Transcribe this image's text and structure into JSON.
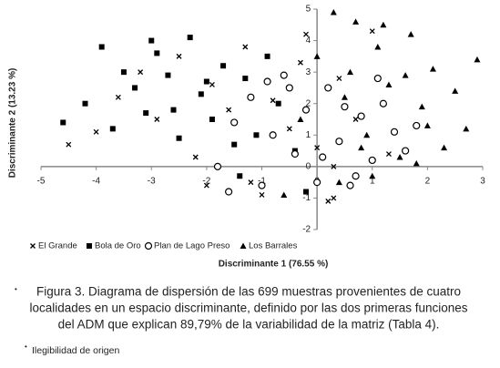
{
  "chart_data": {
    "type": "scatter",
    "x_label": "Discriminante 1 (76.55 %)",
    "y_label": "Discriminante 2 (13.23 %)",
    "xlim": [
      -5,
      3
    ],
    "xticks": [
      -5,
      -4,
      -3,
      -2,
      -1,
      0,
      1,
      2,
      3
    ],
    "ylim": [
      -2,
      5
    ],
    "yticks": [
      -2,
      -1,
      0,
      1,
      2,
      3,
      4,
      5
    ],
    "series": [
      {
        "name": "El Grande",
        "marker": "x",
        "color": "#000000",
        "x": [
          -4.5,
          -4.0,
          -3.6,
          -3.2,
          -2.9,
          -2.5,
          -2.2,
          -1.9,
          -1.6,
          -1.3,
          -1.0,
          -0.8,
          -0.5,
          -0.3,
          0.0,
          0.2,
          0.4,
          0.7,
          1.0,
          1.3,
          -2.0,
          -1.2,
          0.3,
          -0.2,
          0.3
        ],
        "values": [
          0.7,
          1.1,
          2.2,
          3.0,
          1.5,
          3.5,
          0.3,
          2.6,
          1.8,
          3.8,
          -0.9,
          2.1,
          1.2,
          3.3,
          0.6,
          -1.1,
          2.8,
          1.5,
          4.3,
          0.4,
          -0.6,
          -0.5,
          -1.0,
          4.2,
          0.0
        ]
      },
      {
        "name": "Bola de Oro",
        "marker": "square",
        "color": "#000000",
        "x": [
          -4.6,
          -4.2,
          -3.9,
          -3.7,
          -3.5,
          -3.3,
          -3.1,
          -2.9,
          -2.7,
          -2.5,
          -2.3,
          -2.1,
          -1.9,
          -1.7,
          -1.5,
          -1.3,
          -1.1,
          -0.9,
          -0.7,
          -0.4,
          -3.0,
          -2.6,
          -2.0,
          -1.4,
          -0.2
        ],
        "values": [
          1.4,
          2.0,
          3.8,
          1.2,
          3.0,
          2.5,
          1.7,
          3.6,
          2.9,
          0.9,
          4.1,
          2.3,
          1.5,
          3.2,
          0.7,
          2.8,
          1.0,
          3.5,
          2.0,
          0.5,
          4.0,
          1.8,
          2.7,
          -0.3,
          -0.8
        ]
      },
      {
        "name": "Plan de Lago Preso",
        "marker": "circle",
        "color": "#000000",
        "x": [
          -1.8,
          -1.5,
          -1.2,
          -1.0,
          -0.8,
          -0.6,
          -0.4,
          -0.2,
          0.0,
          0.2,
          0.4,
          0.6,
          0.8,
          1.0,
          1.2,
          1.4,
          1.6,
          1.8,
          -0.5,
          0.1,
          0.7,
          1.1,
          -1.6,
          0.5,
          -0.9
        ],
        "values": [
          0.0,
          1.4,
          2.2,
          -0.6,
          1.0,
          2.9,
          0.4,
          1.8,
          -0.5,
          2.5,
          0.8,
          -0.6,
          1.6,
          0.2,
          2.0,
          1.1,
          0.5,
          1.3,
          2.5,
          0.3,
          -0.3,
          2.8,
          -0.8,
          1.9,
          2.7
        ]
      },
      {
        "name": "Los Barrales",
        "marker": "triangle",
        "color": "#000000",
        "x": [
          -0.3,
          0.0,
          0.3,
          0.5,
          0.7,
          0.9,
          1.1,
          1.3,
          1.5,
          1.7,
          1.9,
          2.1,
          2.3,
          2.5,
          2.7,
          2.9,
          0.4,
          0.8,
          1.2,
          1.6,
          2.0,
          1.0,
          0.6,
          1.8,
          -0.6
        ],
        "values": [
          1.5,
          3.5,
          4.9,
          2.2,
          4.6,
          1.0,
          3.8,
          2.6,
          0.3,
          4.2,
          1.9,
          3.1,
          0.6,
          2.4,
          1.2,
          3.4,
          -0.5,
          0.6,
          4.5,
          2.9,
          1.3,
          -0.3,
          3.0,
          0.1,
          -0.9
        ]
      }
    ]
  },
  "caption": [
    "Figura 3. Diagrama de dispersión de las 699 muestras provenientes de cuatro",
    "localidades en un espacio discriminante, definido por las dos primeras funciones",
    "del ADM que explican 89,79% de la variabilidad de la matriz (Tabla 4)."
  ],
  "footnote": "Ilegibilidad de origen"
}
